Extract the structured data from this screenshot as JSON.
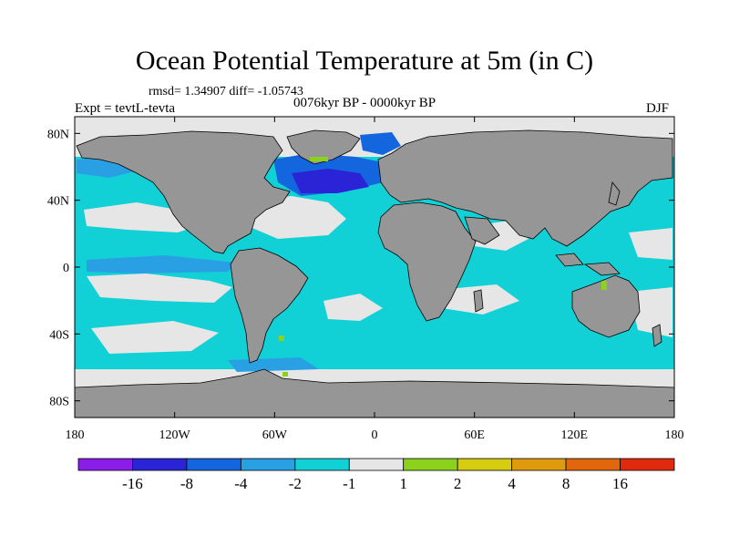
{
  "title": "Ocean Potential Temperature at 5m (in C)",
  "stats": "rmsd= 1.34907 diff= -1.05743",
  "experiment": "Expt = tevtL-tevta",
  "period": "0076kyr BP - 0000kyr BP",
  "season": "DJF",
  "axes": {
    "lon_labels": [
      "180",
      "120W",
      "60W",
      "0",
      "60E",
      "120E",
      "180"
    ],
    "lat_labels": [
      "80N",
      "40N",
      "0",
      "40S",
      "80S"
    ]
  },
  "colorbar": {
    "labels": [
      "-16",
      "-8",
      "-4",
      "-2",
      "-1",
      "1",
      "2",
      "4",
      "8",
      "16"
    ],
    "colors": [
      "#8a1ee8",
      "#2b24d6",
      "#1466de",
      "#2aa0e4",
      "#12d1d6",
      "#e6e6e6",
      "#8cd21c",
      "#d6cc10",
      "#e09a0e",
      "#e2660c",
      "#e02a0e"
    ]
  },
  "colors": {
    "land": "#969696",
    "no_data": "#e6e6e6",
    "ocean_main": "#12d1d6",
    "ocean_cooler": "#2aa0e4",
    "ocean_coolest": "#1466de"
  }
}
